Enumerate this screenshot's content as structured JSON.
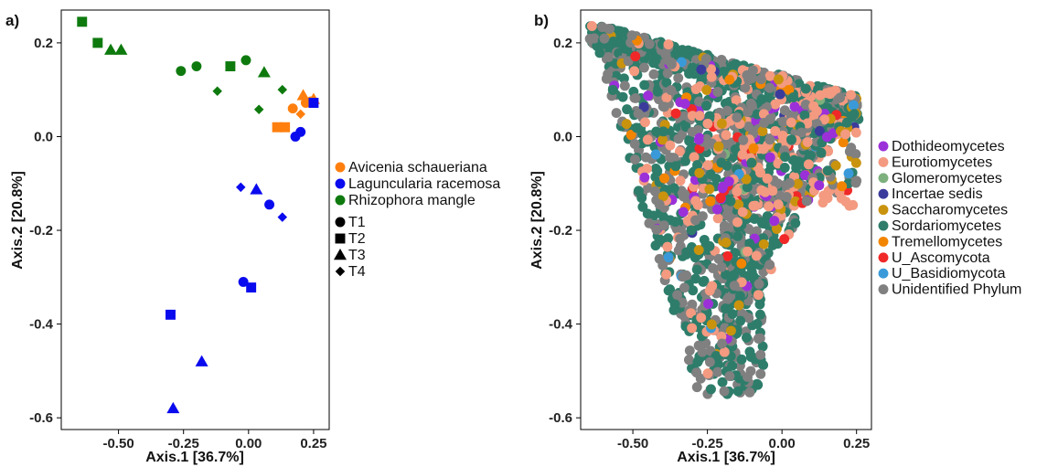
{
  "chart_data": [
    {
      "type": "scatter",
      "panel_label": "a)",
      "xlabel": "Axis.1   [36.7%]",
      "ylabel": "Axis.2   [20.8%]",
      "xlim": [
        -0.72,
        0.31
      ],
      "ylim": [
        -0.625,
        0.27
      ],
      "xticks": [
        {
          "v": -0.5,
          "label": "-0.50"
        },
        {
          "v": -0.25,
          "label": "-0.25"
        },
        {
          "v": 0.0,
          "label": "0.00"
        },
        {
          "v": 0.25,
          "label": "0.25"
        }
      ],
      "yticks": [
        {
          "v": 0.2,
          "label": "0.2"
        },
        {
          "v": 0.0,
          "label": "0.0"
        },
        {
          "v": -0.2,
          "label": "-0.2"
        },
        {
          "v": -0.4,
          "label": "-0.4"
        },
        {
          "v": -0.6,
          "label": "-0.6"
        }
      ],
      "grid": false,
      "legend_position": "right",
      "color_legend": [
        {
          "label": "Avicenia schaueriana",
          "color": "#FF7F0E"
        },
        {
          "label": "Laguncularia racemosa",
          "color": "#0A0AEE"
        },
        {
          "label": "Rhizophora mangle",
          "color": "#0E7A0E"
        }
      ],
      "shape_legend": [
        {
          "label": "T1",
          "shape": "circle"
        },
        {
          "label": "T2",
          "shape": "square"
        },
        {
          "label": "T3",
          "shape": "triangle"
        },
        {
          "label": "T4",
          "shape": "diamond"
        }
      ],
      "series": [
        {
          "species": "Rhizophora mangle",
          "color": "#0E7A0E",
          "points": [
            {
              "x": -0.64,
              "y": 0.245,
              "shape": "square"
            },
            {
              "x": -0.58,
              "y": 0.2,
              "shape": "square"
            },
            {
              "x": -0.53,
              "y": 0.185,
              "shape": "triangle"
            },
            {
              "x": -0.49,
              "y": 0.185,
              "shape": "triangle"
            },
            {
              "x": -0.26,
              "y": 0.14,
              "shape": "circle"
            },
            {
              "x": -0.2,
              "y": 0.15,
              "shape": "circle"
            },
            {
              "x": -0.07,
              "y": 0.15,
              "shape": "square"
            },
            {
              "x": -0.01,
              "y": 0.163,
              "shape": "circle"
            },
            {
              "x": 0.06,
              "y": 0.137,
              "shape": "triangle"
            },
            {
              "x": -0.12,
              "y": 0.097,
              "shape": "diamond"
            },
            {
              "x": 0.13,
              "y": 0.1,
              "shape": "diamond"
            },
            {
              "x": 0.04,
              "y": 0.058,
              "shape": "diamond"
            }
          ]
        },
        {
          "species": "Avicenia schaueriana",
          "color": "#FF7F0E",
          "points": [
            {
              "x": 0.21,
              "y": 0.088,
              "shape": "triangle"
            },
            {
              "x": 0.25,
              "y": 0.08,
              "shape": "triangle"
            },
            {
              "x": 0.24,
              "y": 0.075,
              "shape": "circle"
            },
            {
              "x": 0.22,
              "y": 0.072,
              "shape": "circle"
            },
            {
              "x": 0.17,
              "y": 0.06,
              "shape": "circle"
            },
            {
              "x": 0.2,
              "y": 0.048,
              "shape": "diamond"
            },
            {
              "x": 0.11,
              "y": 0.02,
              "shape": "square"
            },
            {
              "x": 0.14,
              "y": 0.02,
              "shape": "square"
            }
          ]
        },
        {
          "species": "Laguncularia racemosa",
          "color": "#0A0AEE",
          "points": [
            {
              "x": 0.25,
              "y": 0.072,
              "shape": "square"
            },
            {
              "x": 0.2,
              "y": 0.01,
              "shape": "circle"
            },
            {
              "x": 0.18,
              "y": 0.0,
              "shape": "circle"
            },
            {
              "x": -0.03,
              "y": -0.108,
              "shape": "diamond"
            },
            {
              "x": 0.03,
              "y": -0.113,
              "shape": "triangle"
            },
            {
              "x": 0.08,
              "y": -0.145,
              "shape": "circle"
            },
            {
              "x": 0.13,
              "y": -0.172,
              "shape": "diamond"
            },
            {
              "x": -0.02,
              "y": -0.31,
              "shape": "circle"
            },
            {
              "x": 0.01,
              "y": -0.322,
              "shape": "square"
            },
            {
              "x": -0.3,
              "y": -0.38,
              "shape": "square"
            },
            {
              "x": -0.18,
              "y": -0.48,
              "shape": "triangle"
            },
            {
              "x": -0.29,
              "y": -0.58,
              "shape": "triangle"
            }
          ]
        }
      ]
    },
    {
      "type": "scatter",
      "panel_label": "b)",
      "xlabel": "Axis.1   [36.7%]",
      "ylabel": "Axis.2   [20.8%]",
      "xlim": [
        -0.675,
        0.3
      ],
      "ylim": [
        -0.625,
        0.27
      ],
      "xticks": [
        {
          "v": -0.5,
          "label": "-0.50"
        },
        {
          "v": -0.25,
          "label": "-0.25"
        },
        {
          "v": 0.0,
          "label": "0.00"
        },
        {
          "v": 0.25,
          "label": "0.25"
        }
      ],
      "yticks": [
        {
          "v": 0.2,
          "label": "0.2"
        },
        {
          "v": 0.0,
          "label": "0.0"
        },
        {
          "v": -0.2,
          "label": "-0.2"
        },
        {
          "v": -0.4,
          "label": "-0.4"
        },
        {
          "v": -0.6,
          "label": "-0.6"
        }
      ],
      "grid": false,
      "legend_position": "right",
      "legend": [
        {
          "label": "Dothideomycetes",
          "color": "#9B30D9"
        },
        {
          "label": "Eurotiomycetes",
          "color": "#F39A80"
        },
        {
          "label": "Glomeromycetes",
          "color": "#7DB07D"
        },
        {
          "label": "Incertae sedis",
          "color": "#3B3B9C"
        },
        {
          "label": "Saccharomycetes",
          "color": "#C9930E"
        },
        {
          "label": "Sordariomycetes",
          "color": "#2E7D6B"
        },
        {
          "label": "Tremellomycetes",
          "color": "#F28500"
        },
        {
          "label": "U_Ascomycota",
          "color": "#F02828"
        },
        {
          "label": "U_Basidiomycota",
          "color": "#3A9AD9"
        },
        {
          "label": "Unidentified Phylum",
          "color": "#808080"
        }
      ],
      "point_density": "many overlapping points (approximately 2000) filling a triangular region with vertices near (-0.65, 0.245), (0.26, 0.08) and (-0.27, -0.58)"
    }
  ]
}
